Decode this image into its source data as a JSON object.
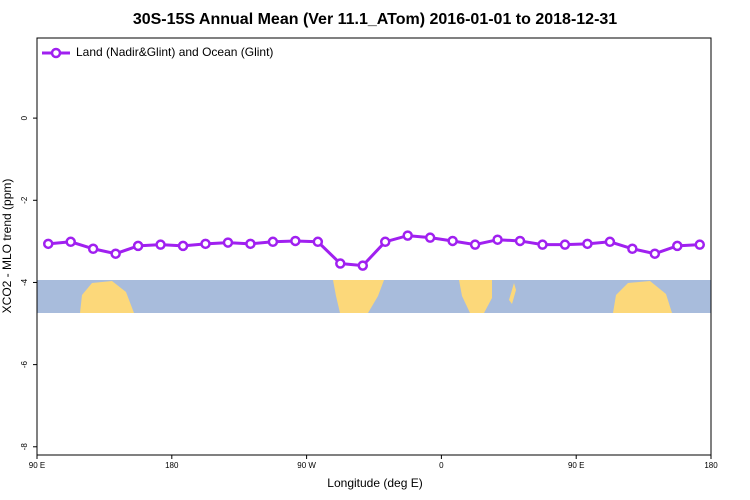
{
  "chart_data": {
    "type": "line",
    "title": "30S-15S Annual Mean (Ver 11.1_ATom)   2016-01-01 to 2018-12-31",
    "x_label": "Longitude (deg E)",
    "y_label": "XCO2 - MLO trend (ppm)",
    "x": [
      97.5,
      112.5,
      127.5,
      142.5,
      157.5,
      172.5,
      187.5,
      202.5,
      217.5,
      232.5,
      247.5,
      262.5,
      277.5,
      292.5,
      307.5,
      322.5,
      337.5,
      352.5,
      367.5,
      382.5,
      397.5,
      412.5,
      427.5,
      442.5,
      457.5,
      472.5,
      487.5,
      502.5,
      517.5,
      532.5
    ],
    "series": [
      {
        "name": "Land (Nadir&Glint) and Ocean (Glint)",
        "color": "#a020f0",
        "values": [
          -3.06,
          -3.01,
          -3.18,
          -3.3,
          -3.11,
          -3.08,
          -3.11,
          -3.06,
          -3.03,
          -3.06,
          -3.01,
          -2.99,
          -3.01,
          -3.54,
          -3.59,
          -3.01,
          -2.86,
          -2.91,
          -2.99,
          -3.08,
          -2.96,
          -2.99,
          -3.08,
          -3.08,
          -3.06,
          -3.01,
          -3.18,
          -3.3,
          -3.11,
          -3.08
        ]
      }
    ],
    "xlim": [
      90,
      540
    ],
    "xticks": [
      {
        "value": 90,
        "label": "90 E"
      },
      180,
      {
        "value": 270,
        "label": "90 W"
      },
      {
        "value": 360,
        "label": "0"
      },
      {
        "value": 450,
        "label": "90 E"
      },
      {
        "value": 540,
        "label": "180"
      }
    ],
    "ylim": [
      -8.2,
      1.95
    ],
    "yticks": [
      -8,
      -6,
      -4,
      -2,
      0
    ],
    "legend": "top-left"
  }
}
